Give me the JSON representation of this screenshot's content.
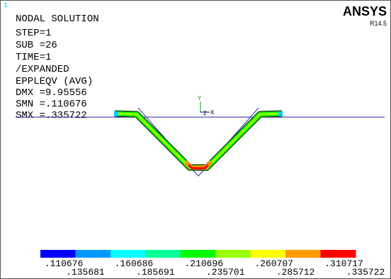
{
  "window_number": "1",
  "header": {
    "lines": [
      "NODAL SOLUTION",
      "STEP=1",
      "SUB =26",
      "TIME=1",
      "/EXPANDED",
      "EPPLEQV   (AVG)",
      "DMX =9.95556",
      "SMN =.110676",
      "SMX =.335722"
    ]
  },
  "brand": {
    "name": "ANSYS",
    "version": "R14.5"
  },
  "triad": {
    "y": "Y",
    "z": "Z",
    "x": "X"
  },
  "legend": {
    "colors": [
      "#0000ff",
      "#0099ff",
      "#00ffff",
      "#00ff99",
      "#00ff00",
      "#99ff00",
      "#ffff00",
      "#ff9900",
      "#ff0000"
    ],
    "labels": [
      ".110676",
      ".135681",
      ".160686",
      ".185691",
      ".210696",
      ".235701",
      ".260707",
      ".285712",
      ".310717",
      ".335722"
    ]
  }
}
